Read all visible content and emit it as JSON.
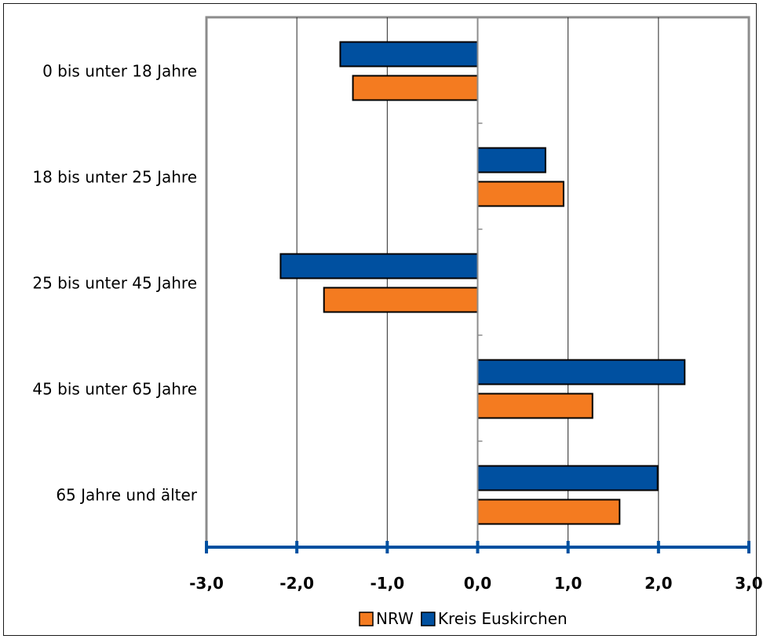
{
  "chart_data": {
    "type": "bar",
    "orientation": "horizontal",
    "categories": [
      "0 bis unter 18 Jahre",
      "18 bis unter 25 Jahre",
      "25 bis unter 45 Jahre",
      "45 bis unter 65 Jahre",
      "65 Jahre und älter"
    ],
    "series": [
      {
        "name": "Kreis Euskirchen",
        "color": "#0050a0",
        "values": [
          -1.52,
          0.75,
          -2.18,
          2.29,
          1.99
        ]
      },
      {
        "name": "NRW",
        "color": "#f47b20",
        "values": [
          -1.38,
          0.95,
          -1.7,
          1.27,
          1.57
        ]
      }
    ],
    "xlim": [
      -3.0,
      3.0
    ],
    "xticks": [
      "-3,0",
      "-2,0",
      "-1,0",
      "0,0",
      "1,0",
      "2,0",
      "3,0"
    ],
    "tick_values": [
      -3,
      -2,
      -1,
      0,
      1,
      2,
      3
    ],
    "legend": {
      "position": "bottom",
      "entries": [
        {
          "name": "NRW",
          "color": "#f47b20"
        },
        {
          "name": "Kreis Euskirchen",
          "color": "#0050a0"
        }
      ]
    },
    "grid": "vertical",
    "axis_color": "#0050a0"
  }
}
